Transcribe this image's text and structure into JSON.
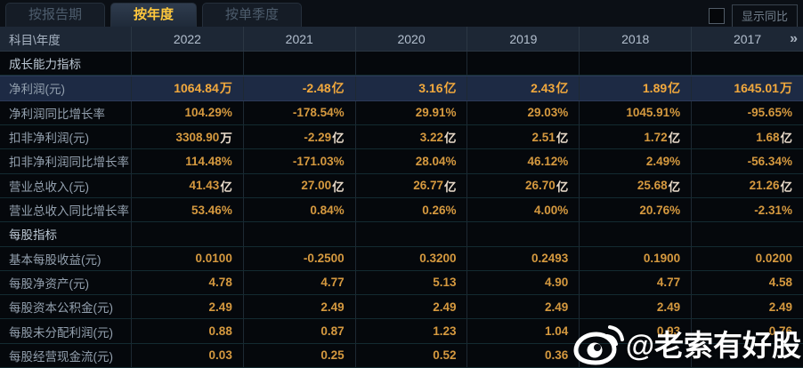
{
  "tabs": [
    {
      "id": "by-report-period",
      "label": "按报告期",
      "active": false
    },
    {
      "id": "by-year",
      "label": "按年度",
      "active": true
    },
    {
      "id": "by-quarter",
      "label": "按单季度",
      "active": false
    }
  ],
  "controls": {
    "show_yoy_label": "显示同比",
    "show_yoy_checked": false
  },
  "table": {
    "corner_label": "科目\\年度",
    "more_icon": "»",
    "years": [
      "2022",
      "2021",
      "2020",
      "2019",
      "2018",
      "2017"
    ],
    "rows": [
      {
        "type": "section",
        "label": "成长能力指标"
      },
      {
        "type": "data",
        "label": "净利润(元)",
        "highlight": true,
        "values": [
          "1064.84万",
          "-2.48亿",
          "3.16亿",
          "2.43亿",
          "1.89亿",
          "1645.01万"
        ]
      },
      {
        "type": "data",
        "label": "净利润同比增长率",
        "values": [
          "104.29%",
          "-178.54%",
          "29.91%",
          "29.03%",
          "1045.91%",
          "-95.65%"
        ]
      },
      {
        "type": "data",
        "label": "扣非净利润(元)",
        "values": [
          "3308.90万",
          "-2.29亿",
          "3.22亿",
          "2.51亿",
          "1.72亿",
          "1.68亿"
        ]
      },
      {
        "type": "data",
        "label": "扣非净利润同比增长率",
        "values": [
          "114.48%",
          "-171.03%",
          "28.04%",
          "46.12%",
          "2.49%",
          "-56.34%"
        ]
      },
      {
        "type": "data",
        "label": "营业总收入(元)",
        "values": [
          "41.43亿",
          "27.00亿",
          "26.77亿",
          "26.70亿",
          "25.68亿",
          "21.26亿"
        ]
      },
      {
        "type": "data",
        "label": "营业总收入同比增长率",
        "values": [
          "53.46%",
          "0.84%",
          "0.26%",
          "4.00%",
          "20.76%",
          "-2.31%"
        ]
      },
      {
        "type": "section",
        "label": "每股指标"
      },
      {
        "type": "data",
        "label": "基本每股收益(元)",
        "values": [
          "0.0100",
          "-0.2500",
          "0.3200",
          "0.2493",
          "0.1900",
          "0.0200"
        ]
      },
      {
        "type": "data",
        "label": "每股净资产(元)",
        "values": [
          "4.78",
          "4.77",
          "5.13",
          "4.90",
          "4.77",
          "4.58"
        ]
      },
      {
        "type": "data",
        "label": "每股资本公积金(元)",
        "values": [
          "2.49",
          "2.49",
          "2.49",
          "2.49",
          "2.49",
          "2.49"
        ]
      },
      {
        "type": "data",
        "label": "每股未分配利润(元)",
        "values": [
          "0.88",
          "0.87",
          "1.23",
          "1.04",
          "0.93",
          "0.76"
        ]
      },
      {
        "type": "data",
        "label": "每股经营现金流(元)",
        "obscured_by_watermark": [
          4,
          5
        ],
        "values": [
          "0.03",
          "0.25",
          "0.52",
          "0.36",
          "",
          ""
        ]
      }
    ]
  },
  "watermark": {
    "handle": "@老索有好股"
  },
  "colors": {
    "value_gold": "#d5993f",
    "highlight_gold": "#f2a93d",
    "highlight_row_bg": "#1d2a44",
    "tab_active_text": "#ffc83d",
    "header_bg": "#1d2735"
  }
}
